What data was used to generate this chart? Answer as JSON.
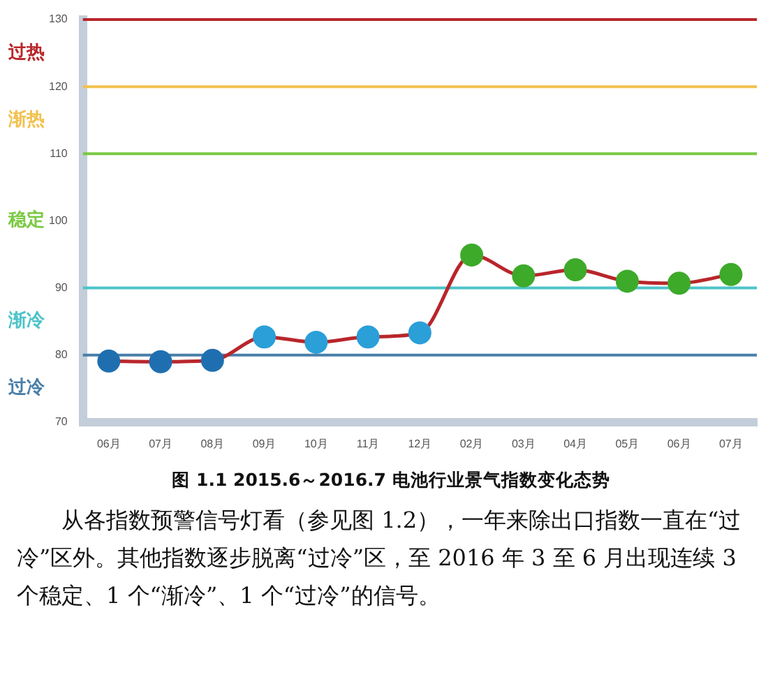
{
  "chart_data": {
    "type": "line",
    "title": "图 1.1 2015.6～2016.7 电池行业景气指数变化态势",
    "categories": [
      "06月",
      "07月",
      "08月",
      "09月",
      "10月",
      "11月",
      "12月",
      "02月",
      "03月",
      "04月",
      "05月",
      "06月",
      "07月"
    ],
    "series": [
      {
        "color": "#b8262b",
        "values": [
          79.1,
          79.0,
          79.2,
          82.7,
          81.9,
          82.7,
          83.3,
          94.9,
          91.8,
          92.7,
          91.0,
          90.7,
          92.0
        ],
        "colors": [
          "#1f6fb0",
          "#1f6fb0",
          "#1f6fb0",
          "#2a9fd8",
          "#2a9fd8",
          "#2a9fd8",
          "#2a9fd8",
          "#3daa2a",
          "#3daa2a",
          "#3daa2a",
          "#3daa2a",
          "#3daa2a",
          "#3daa2a"
        ]
      }
    ],
    "ylim": [
      70,
      130
    ],
    "yticks": [
      70,
      80,
      90,
      100,
      110,
      120,
      130
    ],
    "grid": false,
    "legend": false,
    "marker": "circle",
    "ref_lines": [
      {
        "axis": "y",
        "value": 130,
        "label": "过热",
        "color": "#b8262b"
      },
      {
        "axis": "y",
        "value": 120,
        "label": "渐热",
        "color": "#f2c14e"
      },
      {
        "axis": "y",
        "value": 110,
        "label": "稳定",
        "color": "#7ac943"
      },
      {
        "axis": "y",
        "value": 90,
        "label": "渐冷",
        "color": "#4cc3c9"
      },
      {
        "axis": "y",
        "value": 80,
        "label": "过冷",
        "color": "#4a7fa8"
      }
    ],
    "annotations": [
      "从各指数预警信号灯看（参见图 1.2），一年来除出口指数一直在“过冷”区外。其他指数逐步脱离“过冷”区，至 2016 年 3 至 6 月出现连续 3 个稳定、1 个“渐冷”、1 个“过冷”的信号。"
    ]
  }
}
